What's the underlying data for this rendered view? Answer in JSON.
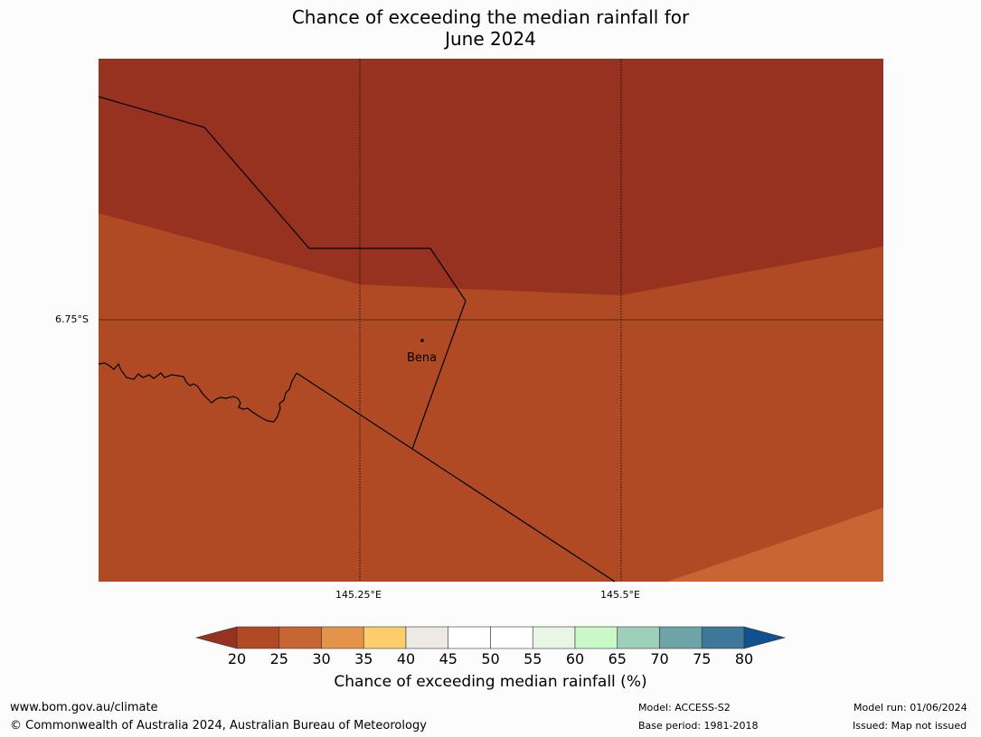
{
  "title_line1": "Chance of exceeding the median rainfall for",
  "title_line2": "June 2024",
  "map": {
    "lat_label": "6.75°S",
    "lon_labels": [
      "145.25°E",
      "145.5°E"
    ],
    "place_label": "Bena",
    "colors": {
      "band_20_or_less": "#96321f",
      "band_20_25": "#b04a25",
      "band_25_30": "#c86633"
    }
  },
  "colorbar": {
    "ticks": [
      "20",
      "25",
      "30",
      "35",
      "40",
      "45",
      "50",
      "55",
      "60",
      "65",
      "70",
      "75",
      "80"
    ],
    "colors": [
      "#b04a25",
      "#c86633",
      "#e3944a",
      "#fdcd6b",
      "#ede9e4",
      "#ffffff",
      "#ffffff",
      "#e9f6e5",
      "#caf9c7",
      "#9dcfba",
      "#6ea3a7",
      "#3e7899"
    ],
    "under_color": "#96321f",
    "over_color": "#12518f",
    "label": "Chance of exceeding median rainfall (%)"
  },
  "footer": {
    "url": "www.bom.gov.au/climate",
    "copyright": "© Commonwealth of Australia 2024, Australian Bureau of Meteorology",
    "model": "Model: ACCESS-S2",
    "base_period": "Base period: 1981-2018",
    "model_run": "Model run: 01/06/2024",
    "issued": "Issued: Map not issued"
  }
}
